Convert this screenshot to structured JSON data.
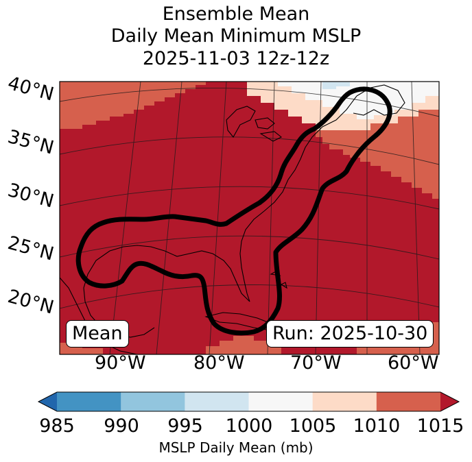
{
  "title": {
    "line1": "Ensemble Mean",
    "line2": "Daily Mean Minimum MSLP",
    "line3": "2025-11-03 12z-12z"
  },
  "map": {
    "latitude_labels": [
      "40°N",
      "35°N",
      "30°N",
      "25°N",
      "20°N"
    ],
    "longitude_labels": [
      "90°W",
      "80°W",
      "70°W",
      "60°W"
    ],
    "left_box_label": "Mean",
    "run_label": "Run: 2025-10-30"
  },
  "colorbar": {
    "ticks": [
      "985",
      "990",
      "995",
      "1000",
      "1005",
      "1010",
      "1015"
    ],
    "label": "MSLP Daily Mean (mb)",
    "extend": "both",
    "colors": [
      "#2166ac",
      "#4393c3",
      "#92c5de",
      "#d1e5f0",
      "#f7f7f7",
      "#fddbc7",
      "#d6604d",
      "#b2182b"
    ]
  },
  "colors": {
    "dominant_fill": "#b2182b",
    "outer_band": "#d6604d",
    "light_band": "#fddbc7",
    "white_band": "#f7f7f7",
    "contour": "#000000"
  }
}
